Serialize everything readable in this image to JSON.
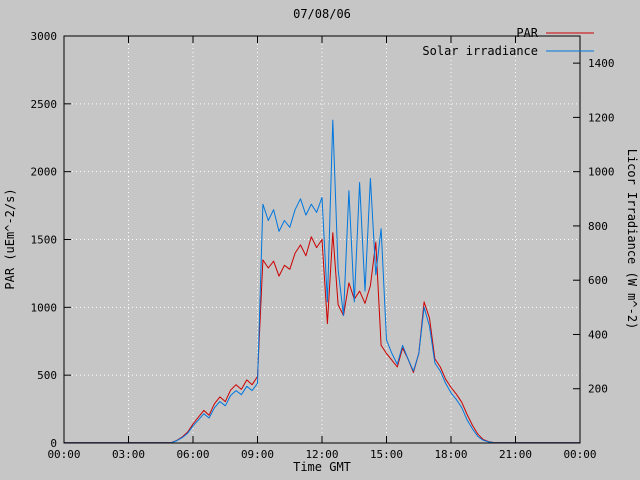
{
  "title": "07/08/06",
  "legend": [
    {
      "label": "PAR",
      "color": "#cc0000"
    },
    {
      "label": "Solar irradiance",
      "color": "#0077dd"
    }
  ],
  "axes": {
    "x": {
      "label": "Time GMT",
      "range": [
        0,
        24
      ],
      "ticks": [
        0,
        3,
        6,
        9,
        12,
        15,
        18,
        21,
        24
      ],
      "tick_labels": [
        "00:00",
        "03:00",
        "06:00",
        "09:00",
        "12:00",
        "15:00",
        "18:00",
        "21:00",
        "00:00"
      ]
    },
    "y_left": {
      "label": "PAR (uEm^-2/s)",
      "range": [
        0,
        3000
      ],
      "ticks": [
        0,
        500,
        1000,
        1500,
        2000,
        2500,
        3000
      ],
      "tick_color": "#cc0000"
    },
    "y_right": {
      "label": "Licor Irradiance (W m^-2)",
      "range": [
        0,
        1500
      ],
      "ticks": [
        200,
        400,
        600,
        800,
        1000,
        1200,
        1400
      ],
      "tick_color": "#000000"
    }
  },
  "colors": {
    "background": "#c6c6c6",
    "plot_border": "#000000",
    "grid": "#ffffff"
  },
  "chart_data": {
    "type": "line",
    "title": "07/08/06",
    "xlabel": "Time GMT",
    "ylabel_left": "PAR (uEm^-2/s)",
    "ylabel_right": "Licor Irradiance (W m^-2)",
    "x_units": "hours GMT",
    "y_left_range": [
      0,
      3000
    ],
    "y_right_range": [
      0,
      1500
    ],
    "grid": true,
    "legend_position": "top-right",
    "x": [
      0,
      0.25,
      0.5,
      0.75,
      1,
      1.25,
      1.5,
      1.75,
      2,
      2.25,
      2.5,
      2.75,
      3,
      3.25,
      3.5,
      3.75,
      4,
      4.25,
      4.5,
      4.75,
      5,
      5.25,
      5.5,
      5.75,
      6,
      6.25,
      6.5,
      6.75,
      7,
      7.25,
      7.5,
      7.75,
      8,
      8.25,
      8.5,
      8.75,
      9,
      9.25,
      9.5,
      9.75,
      10,
      10.25,
      10.5,
      10.75,
      11,
      11.25,
      11.5,
      11.75,
      12,
      12.25,
      12.5,
      12.75,
      13,
      13.25,
      13.5,
      13.75,
      14,
      14.25,
      14.5,
      14.75,
      15,
      15.25,
      15.5,
      15.75,
      16,
      16.25,
      16.5,
      16.75,
      17,
      17.25,
      17.5,
      17.75,
      18,
      18.25,
      18.5,
      18.75,
      19,
      19.25,
      19.5,
      19.75,
      20,
      20.25,
      20.5,
      20.75,
      21,
      21.25,
      21.5,
      21.75,
      22,
      22.25,
      22.5,
      22.75,
      23,
      23.25,
      23.5,
      23.75,
      24
    ],
    "series": [
      {
        "name": "PAR",
        "axis": "left",
        "units": "uE m^-2 s^-1",
        "color": "#cc0000",
        "values": [
          3,
          3,
          3,
          3,
          3,
          3,
          3,
          3,
          3,
          3,
          3,
          3,
          3,
          3,
          3,
          3,
          3,
          3,
          3,
          3,
          3,
          20,
          45,
          80,
          140,
          190,
          240,
          205,
          290,
          340,
          305,
          390,
          430,
          395,
          465,
          430,
          490,
          1350,
          1290,
          1340,
          1230,
          1310,
          1280,
          1400,
          1460,
          1380,
          1520,
          1440,
          1500,
          880,
          1550,
          1020,
          940,
          1180,
          1060,
          1120,
          1030,
          1160,
          1480,
          720,
          660,
          610,
          560,
          700,
          620,
          520,
          660,
          1040,
          920,
          620,
          560,
          470,
          410,
          360,
          300,
          210,
          130,
          65,
          25,
          10,
          3,
          3,
          3,
          3,
          3,
          3,
          3,
          3,
          3,
          3,
          3,
          3,
          3,
          3,
          3,
          3,
          3
        ]
      },
      {
        "name": "Solar irradiance",
        "axis": "right",
        "units": "W m^-2",
        "color": "#0077dd",
        "values": [
          1,
          1,
          1,
          1,
          1,
          1,
          1,
          1,
          1,
          1,
          1,
          1,
          1,
          1,
          1,
          1,
          1,
          1,
          1,
          1,
          1,
          9,
          20,
          36,
          63,
          85,
          108,
          92,
          130,
          153,
          137,
          175,
          193,
          178,
          209,
          193,
          220,
          880,
          820,
          860,
          780,
          820,
          795,
          860,
          900,
          840,
          880,
          850,
          905,
          520,
          1190,
          640,
          470,
          930,
          520,
          960,
          560,
          975,
          620,
          790,
          380,
          330,
          290,
          360,
          310,
          265,
          330,
          500,
          430,
          295,
          265,
          220,
          185,
          160,
          130,
          85,
          52,
          24,
          10,
          4,
          1,
          1,
          1,
          1,
          1,
          1,
          1,
          1,
          1,
          1,
          1,
          1,
          1,
          1,
          1,
          1,
          1
        ]
      }
    ]
  }
}
